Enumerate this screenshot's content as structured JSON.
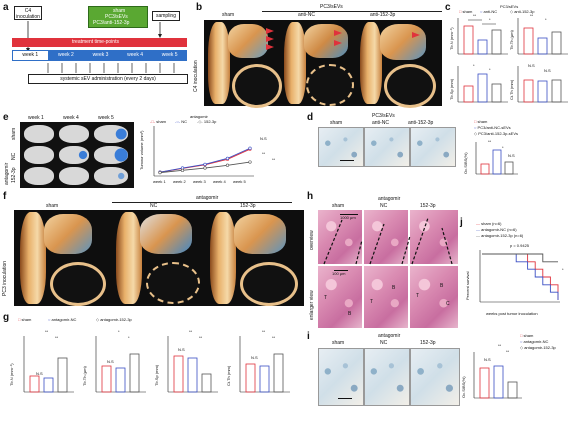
{
  "panel_labels": [
    "a",
    "b",
    "c",
    "d",
    "e",
    "f",
    "g",
    "h",
    "i",
    "j"
  ],
  "a": {
    "c4": "C4 inoculation",
    "arms": [
      "sham",
      "PC3/sEVs",
      "PC3/anti-152-3p"
    ],
    "sampling": "sampling",
    "timeline": "treatment time-points",
    "weeks": [
      "week 1",
      "week 2",
      "week 3",
      "week 4",
      "week 5"
    ],
    "admin": "systemic sEV administration (every 2 days)"
  },
  "b": {
    "header": "PC3/sEVs",
    "cols": [
      "sham",
      "anti-NC",
      "anti-152-3p"
    ],
    "side": "C4 inoculation"
  },
  "c": {
    "legend": [
      "sham",
      "anti-NC",
      "anti-152-3p"
    ],
    "legend_title": "PC3/sEVs",
    "charts": [
      {
        "ylabel": "Tb.N (mm⁻¹)",
        "sig": [
          "**",
          "*"
        ]
      },
      {
        "ylabel": "Tb.Th (μm)",
        "sig": [
          "**",
          "*"
        ]
      },
      {
        "ylabel": "Tb.Sp (mm)",
        "sig": [
          "*",
          "*"
        ]
      },
      {
        "ylabel": "Ct.Th (mm)",
        "sig": [
          "N.S",
          "N.S"
        ]
      }
    ]
  },
  "d": {
    "header": "PC3/sEVs",
    "cols": [
      "sham",
      "anti-NC",
      "anti-152-3p"
    ],
    "legend": [
      "sham",
      "PC3/anti-NC-sEVs",
      "PC3/anti-152-3p-sEVs"
    ],
    "ylabel": "Oc.S/BS(%)",
    "sig": [
      "**",
      "*",
      "N.S"
    ]
  },
  "e": {
    "cols": [
      "week 1",
      "week 4",
      "week 5"
    ],
    "rows": [
      "sham",
      "NC",
      "152-3p"
    ],
    "rowgroup": "antagomir",
    "legend_title": "antagomir",
    "legend": [
      "sham",
      "NC",
      "152-3p"
    ],
    "ylabel": "Tumour volume (mm³)",
    "weeks": [
      "week 1",
      "week 2",
      "week 3",
      "week 4",
      "week 5"
    ],
    "sig": [
      "N.S",
      "**",
      "**"
    ]
  },
  "f": {
    "header": "antagomir",
    "cols": [
      "sham",
      "NC",
      "152-3p"
    ],
    "side": "PC3 inoculation"
  },
  "g": {
    "legend": [
      "sham",
      "antagomir-NC",
      "antagomir-152-3p"
    ],
    "charts": [
      {
        "ylabel": "Tb.N (mm⁻¹)",
        "sig": [
          "N.S",
          "**",
          "**"
        ]
      },
      {
        "ylabel": "Tb.Th (μm)",
        "sig": [
          "N.S",
          "*",
          "*"
        ]
      },
      {
        "ylabel": "Tb.Sp (mm)",
        "sig": [
          "N.S",
          "**",
          "**"
        ]
      },
      {
        "ylabel": "Ct.Th (mm)",
        "sig": [
          "N.S",
          "**",
          "**"
        ]
      }
    ]
  },
  "h": {
    "header": "antagomir",
    "cols": [
      "sham",
      "NC",
      "152-3p"
    ],
    "rows": [
      "overview",
      "enlarger view"
    ],
    "scale1": "1000 μm",
    "scale2": "100 μm",
    "marks": [
      "T",
      "B",
      "T",
      "B",
      "T",
      "B",
      "C"
    ]
  },
  "i": {
    "header": "antagomir",
    "cols": [
      "sham",
      "NC",
      "152-3p"
    ],
    "ylabel": "Oc.S/BS(%)",
    "legend": [
      "sham",
      "antagomir-NC",
      "antagomir-152-3p"
    ],
    "sig": [
      "N.S",
      "**",
      "**"
    ]
  },
  "j": {
    "legend": [
      "sham (n=6)",
      "antagomir-NC (n=6)",
      "antagomir-152-3p (n=6)"
    ],
    "pvalue": "p = 0.9425",
    "xlabel": "weeks post tumor inoculation",
    "ylabel": "Percent survival",
    "sig": "*"
  },
  "colors": {
    "sham": "#e0323c",
    "nc": "#3a4fc4",
    "mir": "#555555",
    "red": "#e0323c",
    "blue": "#3a4fc4",
    "green": "#5aa832"
  },
  "chart_data": [
    {
      "id": "e-volume",
      "type": "line",
      "x": [
        1,
        2,
        3,
        4,
        5
      ],
      "series": [
        {
          "name": "sham",
          "values": [
            40,
            120,
            200,
            320,
            540
          ]
        },
        {
          "name": "NC",
          "values": [
            40,
            130,
            210,
            340,
            560
          ]
        },
        {
          "name": "152-3p",
          "values": [
            30,
            80,
            130,
            190,
            260
          ]
        }
      ],
      "ylim": [
        0,
        1000
      ]
    },
    {
      "id": "j-survival",
      "type": "line",
      "series": [
        {
          "name": "sham (n=6)",
          "values": [
            100,
            100,
            100,
            83,
            67,
            50,
            33,
            0
          ]
        },
        {
          "name": "antagomir-NC (n=6)",
          "values": [
            100,
            100,
            83,
            67,
            50,
            33,
            17,
            0
          ]
        },
        {
          "name": "antagomir-152-3p (n=6)",
          "values": [
            100,
            100,
            100,
            100,
            100,
            83,
            83,
            83
          ]
        }
      ],
      "x": [
        0,
        6,
        9,
        12,
        14,
        16,
        18,
        20
      ],
      "xlim": [
        0,
        20
      ],
      "ylim": [
        0,
        100
      ]
    }
  ]
}
